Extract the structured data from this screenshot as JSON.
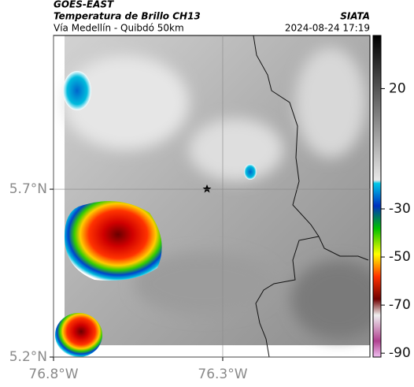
{
  "header": {
    "source": "GOES-EAST",
    "title": "Temperatura de Brillo CH13",
    "subtitle": "Vía Medellín - Quibdó 50km",
    "credit": "SIATA",
    "timestamp": "2024-08-24 17:19"
  },
  "map": {
    "xlim": [
      -76.8,
      -75.865
    ],
    "ylim": [
      5.2,
      6.158
    ],
    "xticks": [
      {
        "value": -76.8,
        "label": "76.8°W"
      },
      {
        "value": -76.3,
        "label": "76.3°W"
      }
    ],
    "yticks": [
      {
        "value": 5.7,
        "label": "5.7°N"
      },
      {
        "value": 5.2,
        "label": "5.2°N"
      }
    ],
    "colorbar": {
      "lim": [
        -91.6,
        42.1
      ],
      "ticks": [
        20,
        -30,
        -50,
        -70,
        -90
      ]
    }
  }
}
